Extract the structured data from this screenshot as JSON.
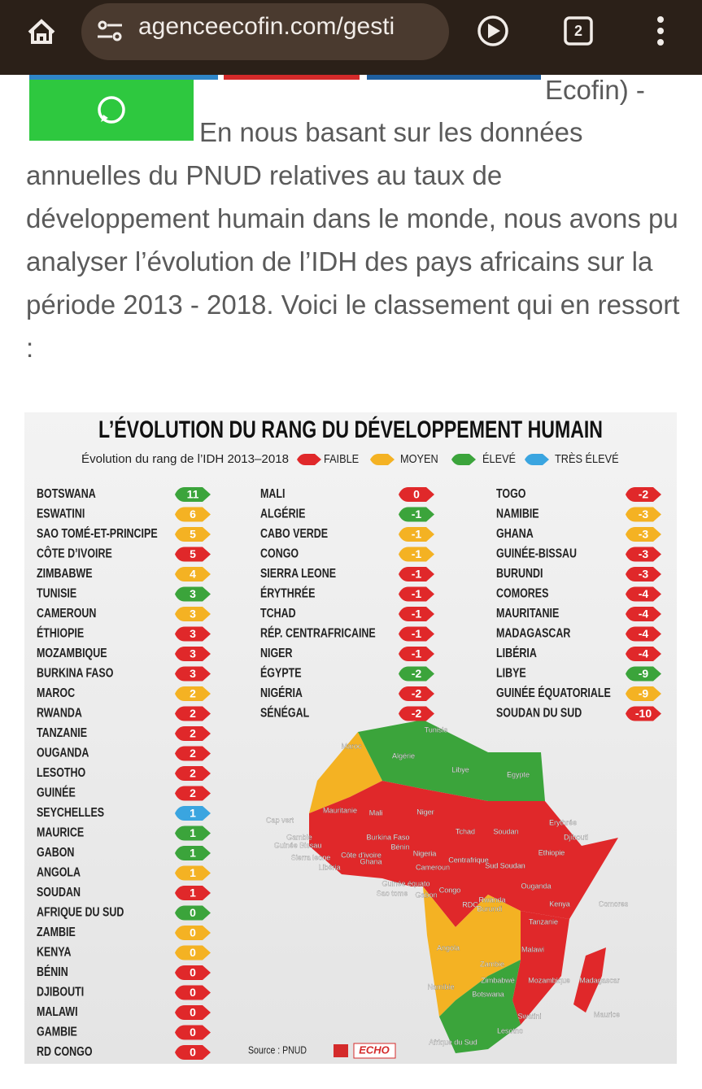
{
  "browser": {
    "url": "agenceecofin.com/gesti",
    "tab_count": "2"
  },
  "article": {
    "first_line": "Ecofin) -",
    "paragraph": "En nous basant sur les données annuelles du PNUD relatives au taux de développement humain dans le monde, nous avons pu analyser l’évolution de l’IDH des pays africains sur la période 2013 - 2018. Voici le classement qui en ressort :"
  },
  "infographic": {
    "title": "L’ÉVOLUTION DU RANG DU DÉVELOPPEMENT HUMAIN",
    "legend_title": "Évolution du rang de l’IDH 2013–2018",
    "legend": [
      {
        "label": "FAIBLE",
        "color": "#e0282a"
      },
      {
        "label": "MOYEN",
        "color": "#f4b223"
      },
      {
        "label": "ÉLEVÉ",
        "color": "#3ba43b"
      },
      {
        "label": "TRÈS ÉLEVÉ",
        "color": "#3aa5e0"
      }
    ],
    "columns": [
      [
        {
          "country": "BOTSWANA",
          "change": 11,
          "level": 2
        },
        {
          "country": "ESWATINI",
          "change": 6,
          "level": 1
        },
        {
          "country": "SAO TOMÉ-ET-PRINCIPE",
          "change": 5,
          "level": 1
        },
        {
          "country": "CÔTE D’IVOIRE",
          "change": 5,
          "level": 0
        },
        {
          "country": "ZIMBABWE",
          "change": 4,
          "level": 1
        },
        {
          "country": "TUNISIE",
          "change": 3,
          "level": 2
        },
        {
          "country": "CAMEROUN",
          "change": 3,
          "level": 1
        },
        {
          "country": "ÉTHIOPIE",
          "change": 3,
          "level": 0
        },
        {
          "country": "MOZAMBIQUE",
          "change": 3,
          "level": 0
        },
        {
          "country": "BURKINA FASO",
          "change": 3,
          "level": 0
        },
        {
          "country": "MAROC",
          "change": 2,
          "level": 1
        },
        {
          "country": "RWANDA",
          "change": 2,
          "level": 0
        },
        {
          "country": "TANZANIE",
          "change": 2,
          "level": 0
        },
        {
          "country": "OUGANDA",
          "change": 2,
          "level": 0
        },
        {
          "country": "LESOTHO",
          "change": 2,
          "level": 0
        },
        {
          "country": "GUINÉE",
          "change": 2,
          "level": 0
        },
        {
          "country": "SEYCHELLES",
          "change": 1,
          "level": 3
        },
        {
          "country": "MAURICE",
          "change": 1,
          "level": 2
        },
        {
          "country": "GABON",
          "change": 1,
          "level": 2
        },
        {
          "country": "ANGOLA",
          "change": 1,
          "level": 1
        },
        {
          "country": "SOUDAN",
          "change": 1,
          "level": 0
        },
        {
          "country": "AFRIQUE DU SUD",
          "change": 0,
          "level": 2
        },
        {
          "country": "ZAMBIE",
          "change": 0,
          "level": 1
        },
        {
          "country": "KENYA",
          "change": 0,
          "level": 1
        },
        {
          "country": "BÉNIN",
          "change": 0,
          "level": 0
        },
        {
          "country": "DJIBOUTI",
          "change": 0,
          "level": 0
        },
        {
          "country": "MALAWI",
          "change": 0,
          "level": 0
        },
        {
          "country": "GAMBIE",
          "change": 0,
          "level": 0
        },
        {
          "country": "RD CONGO",
          "change": 0,
          "level": 0
        }
      ],
      [
        {
          "country": "MALI",
          "change": 0,
          "level": 0
        },
        {
          "country": "ALGÉRIE",
          "change": -1,
          "level": 2
        },
        {
          "country": "CABO VERDE",
          "change": -1,
          "level": 1
        },
        {
          "country": "CONGO",
          "change": -1,
          "level": 1
        },
        {
          "country": "SIERRA LEONE",
          "change": -1,
          "level": 0
        },
        {
          "country": "ÉRYTHRÉE",
          "change": -1,
          "level": 0
        },
        {
          "country": "TCHAD",
          "change": -1,
          "level": 0
        },
        {
          "country": "RÉP. CENTRAFRICAINE",
          "change": -1,
          "level": 0
        },
        {
          "country": "NIGER",
          "change": -1,
          "level": 0
        },
        {
          "country": "ÉGYPTE",
          "change": -2,
          "level": 2
        },
        {
          "country": "NIGÉRIA",
          "change": -2,
          "level": 0
        },
        {
          "country": "SÉNÉGAL",
          "change": -2,
          "level": 0
        }
      ],
      [
        {
          "country": "TOGO",
          "change": -2,
          "level": 0
        },
        {
          "country": "NAMIBIE",
          "change": -3,
          "level": 1
        },
        {
          "country": "GHANA",
          "change": -3,
          "level": 1
        },
        {
          "country": "GUINÉE-BISSAU",
          "change": -3,
          "level": 0
        },
        {
          "country": "BURUNDI",
          "change": -3,
          "level": 0
        },
        {
          "country": "COMORES",
          "change": -4,
          "level": 0
        },
        {
          "country": "MAURITANIE",
          "change": -4,
          "level": 0
        },
        {
          "country": "MADAGASCAR",
          "change": -4,
          "level": 0
        },
        {
          "country": "LIBÉRIA",
          "change": -4,
          "level": 0
        },
        {
          "country": "LIBYE",
          "change": -9,
          "level": 2
        },
        {
          "country": "GUINÉE ÉQUATORIALE",
          "change": -9,
          "level": 1
        },
        {
          "country": "SOUDAN DU SUD",
          "change": -10,
          "level": 0
        }
      ]
    ],
    "map_labels": [
      "Tunisie",
      "Maroc",
      "Algérie",
      "Libye",
      "Egypte",
      "Mauritanie",
      "Mali",
      "Niger",
      "Tchad",
      "Soudan",
      "Erythrée",
      "Djibouti",
      "Ethiopie",
      "Cap vert",
      "Gambie",
      "Guinée Bissau",
      "Sierra leone",
      "Libéria",
      "Côte d'ivoire",
      "Ghana",
      "Burkina Faso",
      "Bénin",
      "Nigeria",
      "Cameroun",
      "Centrafrique",
      "Sud Soudan",
      "Guinée équato",
      "Sao tome",
      "Gabon",
      "Congo",
      "RDC",
      "Ouganda",
      "Rwanda",
      "Burundi",
      "Kenya",
      "Comores",
      "Tanzanie",
      "Angola",
      "Zambie",
      "Malawi",
      "Namibie",
      "Zimbabwé",
      "Mozambique",
      "Madagascar",
      "Botswana",
      "Swatini",
      "Maurice",
      "Afrique du Sud",
      "Lesotho"
    ],
    "source": "Source : PNUD",
    "logo": "ECHO"
  }
}
